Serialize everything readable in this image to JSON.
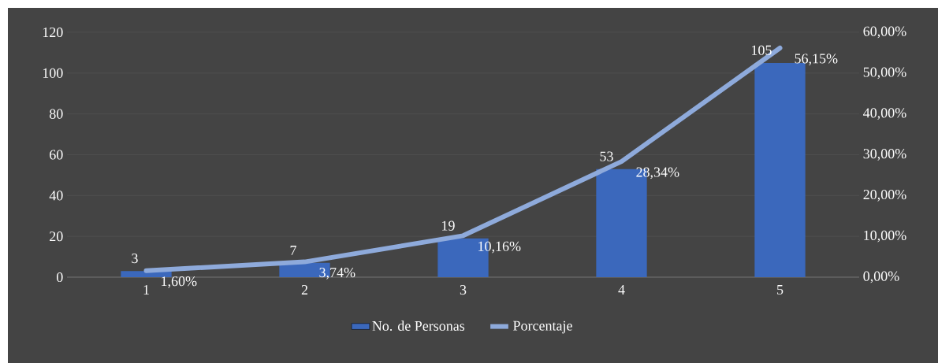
{
  "chart_data": {
    "type": "bar",
    "categories": [
      "1",
      "2",
      "3",
      "4",
      "5"
    ],
    "series": [
      {
        "name": "No. de Personas",
        "color": "#3b68bc",
        "values": [
          3,
          7,
          19,
          53,
          105
        ],
        "value_labels": [
          "3",
          "7",
          "19",
          "53",
          "105"
        ]
      },
      {
        "name": "Porcentaje",
        "type": "line",
        "axis": "y2",
        "color": "#8eaadb",
        "values": [
          1.6,
          3.74,
          10.16,
          28.34,
          56.15
        ],
        "value_labels": [
          "1,60%",
          "3,74%",
          "10,16%",
          "28,34%",
          "56,15%"
        ]
      }
    ],
    "ylim": [
      0,
      120
    ],
    "yticks": [
      0,
      20,
      40,
      60,
      80,
      100,
      120
    ],
    "y2lim": [
      0,
      60
    ],
    "y2ticks": [
      {
        "value": 0,
        "label": "0,00%"
      },
      {
        "value": 10,
        "label": "10,00%"
      },
      {
        "value": 20,
        "label": "20,00%"
      },
      {
        "value": 30,
        "label": "30,00%"
      },
      {
        "value": 40,
        "label": "40,00%"
      },
      {
        "value": 50,
        "label": "50,00%"
      },
      {
        "value": 60,
        "label": "60,00%"
      }
    ],
    "grid": "y",
    "legend": "bottom"
  }
}
